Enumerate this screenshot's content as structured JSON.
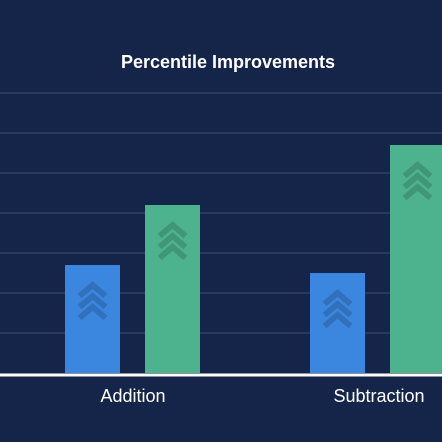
{
  "chart_data": {
    "type": "bar",
    "title": "Percentile Improvements",
    "xlabel": "",
    "ylabel": "",
    "categories": [
      "Addition",
      "Subtraction"
    ],
    "series": [
      {
        "values": [
          27,
          25
        ],
        "color": "#3b87e0"
      },
      {
        "values": [
          42,
          57
        ],
        "color": "#4db38f"
      }
    ],
    "ylim": [
      0,
      70
    ],
    "grid": true,
    "legend": "none",
    "colors": {
      "background": "#15254a",
      "gridline": "#3a4d78",
      "baseline": "#ffffff",
      "text": "#ffffff"
    },
    "icon": "chevron-up-icon"
  }
}
